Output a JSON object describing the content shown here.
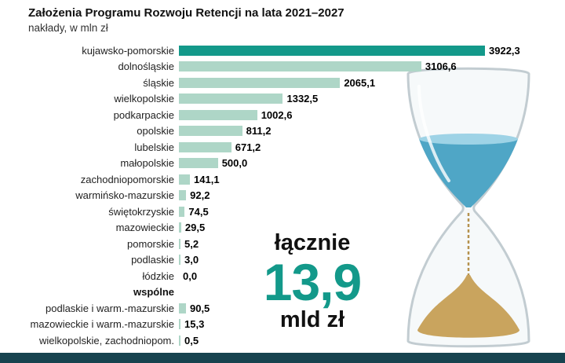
{
  "title": "Założenia Programu Rozwoju Retencji na lata 2021–2027",
  "subtitle": "nakłady, w mln zł",
  "chart_data": {
    "type": "bar",
    "orientation": "horizontal",
    "title": "Założenia Programu Rozwoju Retencji na lata 2021–2027",
    "xlabel": "nakłady, w mln zł",
    "unit": "mln zł",
    "xlim": [
      0,
      4000
    ],
    "max_value": 3922.3,
    "bar_color": "#aed6c7",
    "highlight_bar_color": "#13998a",
    "grid": false,
    "legend": false,
    "rows": [
      {
        "label": "kujawsko-pomorskie",
        "value": 3922.3,
        "display": "3922,3",
        "highlight": true
      },
      {
        "label": "dolnośląskie",
        "value": 3106.6,
        "display": "3106,6"
      },
      {
        "label": "śląskie",
        "value": 2065.1,
        "display": "2065,1"
      },
      {
        "label": "wielkopolskie",
        "value": 1332.5,
        "display": "1332,5"
      },
      {
        "label": "podkarpackie",
        "value": 1002.6,
        "display": "1002,6"
      },
      {
        "label": "opolskie",
        "value": 811.2,
        "display": "811,2"
      },
      {
        "label": "lubelskie",
        "value": 671.2,
        "display": "671,2"
      },
      {
        "label": "małopolskie",
        "value": 500.0,
        "display": "500,0"
      },
      {
        "label": "zachodniopomorskie",
        "value": 141.1,
        "display": "141,1"
      },
      {
        "label": "warmińsko-mazurskie",
        "value": 92.2,
        "display": "92,2"
      },
      {
        "label": "świętokrzyskie",
        "value": 74.5,
        "display": "74,5"
      },
      {
        "label": "mazowieckie",
        "value": 29.5,
        "display": "29,5"
      },
      {
        "label": "pomorskie",
        "value": 5.2,
        "display": "5,2"
      },
      {
        "label": "podlaskie",
        "value": 3.0,
        "display": "3,0"
      },
      {
        "label": "łódzkie",
        "value": 0.0,
        "display": "0,0"
      },
      {
        "label": "wspólne",
        "header": true
      },
      {
        "label": "podlaskie i warm.-mazurskie",
        "value": 90.5,
        "display": "90,5"
      },
      {
        "label": "mazowieckie i warm.-mazurskie",
        "value": 15.3,
        "display": "15,3"
      },
      {
        "label": "wielkopolskie, zachodniopom.",
        "value": 0.5,
        "display": "0,5"
      }
    ]
  },
  "summary": {
    "label": "łącznie",
    "value": "13,9",
    "unit": "mld zł",
    "value_color": "#13998a"
  },
  "hourglass": {
    "water_color": "#4fa6c6",
    "water_surface_color": "#9ed3e6",
    "sand_color": "#c9a45e",
    "glass_stroke_color": "#c2ccd1"
  },
  "footer": {
    "color": "#17434f"
  }
}
